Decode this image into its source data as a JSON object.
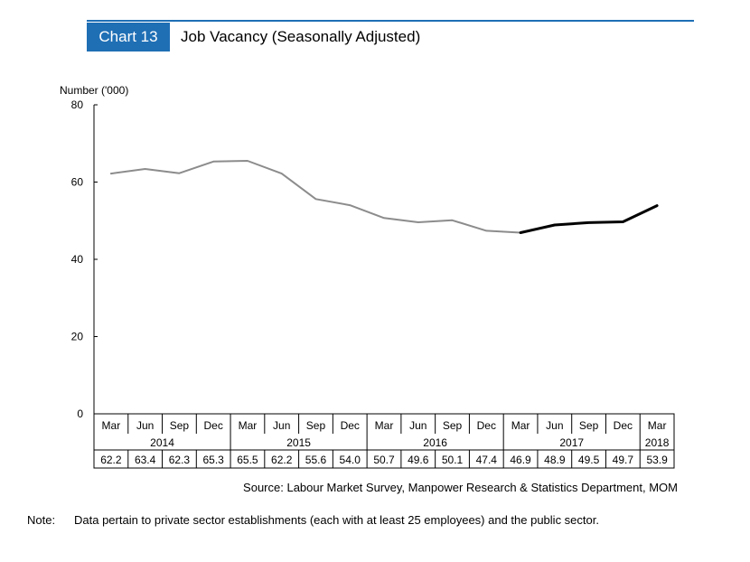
{
  "header": {
    "chart_number": "Chart 13",
    "title": "Job Vacancy (Seasonally Adjusted)",
    "accent_color": "#1f6fb5"
  },
  "chart_data": {
    "type": "line",
    "title": "Job Vacancy (Seasonally Adjusted)",
    "ylabel": "Number ('000)",
    "xlabel": "",
    "ylim": [
      0,
      80
    ],
    "yticks": [
      0,
      20,
      40,
      60,
      80
    ],
    "grid": false,
    "categories": [
      "Mar",
      "Jun",
      "Sep",
      "Dec",
      "Mar",
      "Jun",
      "Sep",
      "Dec",
      "Mar",
      "Jun",
      "Sep",
      "Dec",
      "Mar",
      "Jun",
      "Sep",
      "Dec",
      "Mar"
    ],
    "years": [
      {
        "label": "2014",
        "span": 4
      },
      {
        "label": "2015",
        "span": 4
      },
      {
        "label": "2016",
        "span": 4
      },
      {
        "label": "2017",
        "span": 4
      },
      {
        "label": "2018",
        "span": 1
      }
    ],
    "values": [
      62.2,
      63.4,
      62.3,
      65.3,
      65.5,
      62.2,
      55.6,
      54.0,
      50.7,
      49.6,
      50.1,
      47.4,
      46.9,
      48.9,
      49.5,
      49.7,
      53.9
    ],
    "series": [
      {
        "segment": "2014-Mar to 2017-Mar",
        "start_index": 0,
        "end_index": 12,
        "color": "#8c8c8c"
      },
      {
        "segment": "2017-Mar to 2018-Mar",
        "start_index": 12,
        "end_index": 16,
        "color": "#000000"
      }
    ]
  },
  "source": "Source: Labour Market Survey, Manpower Research & Statistics Department, MOM",
  "note": {
    "label": "Note:",
    "text": "Data pertain to private sector establishments (each with at least 25 employees) and the public sector."
  }
}
